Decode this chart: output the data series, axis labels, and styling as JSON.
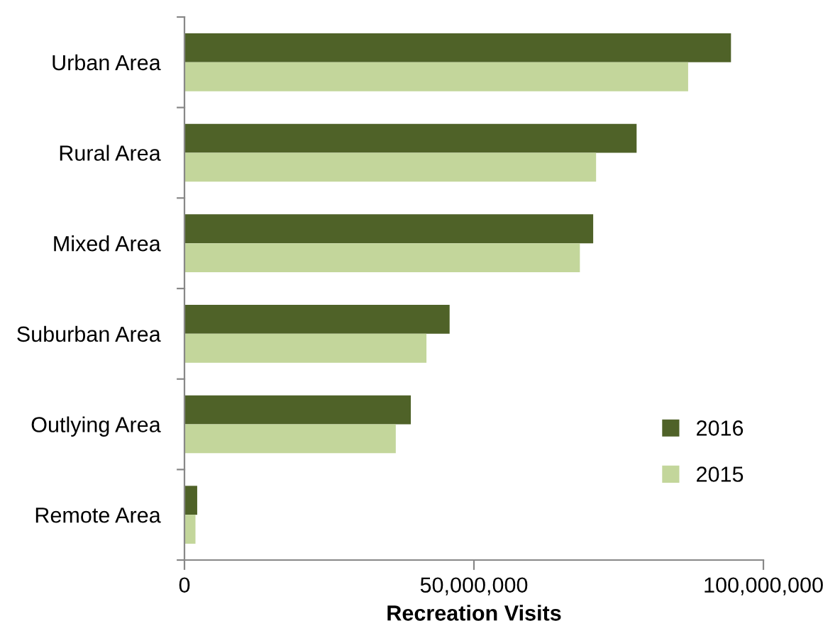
{
  "chart_data": {
    "type": "bar",
    "orientation": "horizontal",
    "xlabel": "Recreation Visits",
    "categories": [
      "Urban Area",
      "Rural Area",
      "Mixed Area",
      "Suburban Area",
      "Outlying Area",
      "Remote Area"
    ],
    "series": [
      {
        "name": "2016",
        "color": "#4f6228",
        "values": [
          94400000,
          78100000,
          70600000,
          45800000,
          39100000,
          2200000
        ]
      },
      {
        "name": "2015",
        "color": "#c3d69b",
        "values": [
          87000000,
          71100000,
          68300000,
          41800000,
          36500000,
          1900000
        ]
      }
    ],
    "xlim": [
      0,
      100000000
    ],
    "xticks": [
      {
        "value": 0,
        "label": "0"
      },
      {
        "value": 50000000,
        "label": "50,000,000"
      },
      {
        "value": 100000000,
        "label": "100,000,000"
      }
    ],
    "grid": false,
    "legend": "bottom right"
  }
}
